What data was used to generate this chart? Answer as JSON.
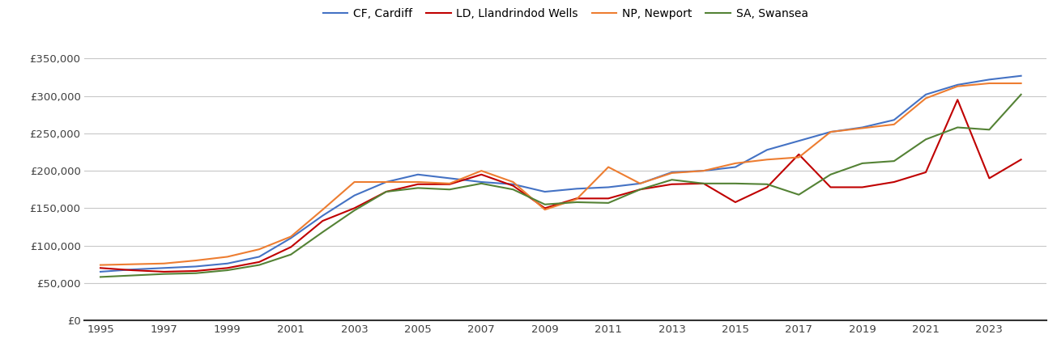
{
  "series": {
    "CF, Cardiff": {
      "color": "#4472C4",
      "years": [
        1995,
        1996,
        1997,
        1998,
        1999,
        2000,
        2001,
        2002,
        2003,
        2004,
        2005,
        2006,
        2007,
        2008,
        2009,
        2010,
        2011,
        2012,
        2013,
        2014,
        2015,
        2016,
        2017,
        2018,
        2019,
        2020,
        2021,
        2022,
        2023,
        2024
      ],
      "values": [
        65000,
        68000,
        70000,
        72000,
        76000,
        85000,
        110000,
        140000,
        167000,
        185000,
        195000,
        190000,
        185000,
        182000,
        172000,
        176000,
        178000,
        183000,
        198000,
        200000,
        205000,
        228000,
        240000,
        252000,
        258000,
        268000,
        302000,
        315000,
        322000,
        327000
      ]
    },
    "LD, Llandrindod Wells": {
      "color": "#C00000",
      "years": [
        1995,
        1996,
        1997,
        1998,
        1999,
        2000,
        2001,
        2002,
        2003,
        2004,
        2005,
        2006,
        2007,
        2008,
        2009,
        2010,
        2011,
        2012,
        2013,
        2014,
        2015,
        2016,
        2017,
        2018,
        2019,
        2020,
        2021,
        2022,
        2023,
        2024
      ],
      "values": [
        70000,
        67000,
        65000,
        66000,
        70000,
        78000,
        98000,
        133000,
        150000,
        172000,
        182000,
        182000,
        195000,
        180000,
        150000,
        163000,
        163000,
        175000,
        182000,
        183000,
        158000,
        178000,
        222000,
        178000,
        178000,
        185000,
        198000,
        295000,
        190000,
        215000
      ]
    },
    "NP, Newport": {
      "color": "#ED7D31",
      "years": [
        1995,
        1996,
        1997,
        1998,
        1999,
        2000,
        2001,
        2002,
        2003,
        2004,
        2005,
        2006,
        2007,
        2008,
        2009,
        2010,
        2011,
        2012,
        2013,
        2014,
        2015,
        2016,
        2017,
        2018,
        2019,
        2020,
        2021,
        2022,
        2023,
        2024
      ],
      "values": [
        74000,
        75000,
        76000,
        80000,
        85000,
        95000,
        112000,
        148000,
        185000,
        185000,
        185000,
        183000,
        200000,
        185000,
        148000,
        162000,
        205000,
        183000,
        197000,
        200000,
        210000,
        215000,
        218000,
        252000,
        257000,
        262000,
        297000,
        313000,
        317000,
        317000
      ]
    },
    "SA, Swansea": {
      "color": "#548235",
      "years": [
        1995,
        1996,
        1997,
        1998,
        1999,
        2000,
        2001,
        2002,
        2003,
        2004,
        2005,
        2006,
        2007,
        2008,
        2009,
        2010,
        2011,
        2012,
        2013,
        2014,
        2015,
        2016,
        2017,
        2018,
        2019,
        2020,
        2021,
        2022,
        2023,
        2024
      ],
      "values": [
        58000,
        60000,
        62000,
        63000,
        67000,
        74000,
        88000,
        118000,
        147000,
        172000,
        177000,
        175000,
        183000,
        175000,
        155000,
        158000,
        157000,
        175000,
        188000,
        183000,
        183000,
        182000,
        168000,
        195000,
        210000,
        213000,
        242000,
        258000,
        255000,
        302000
      ]
    }
  },
  "xlim": [
    1994.5,
    2024.8
  ],
  "ylim": [
    0,
    370000
  ],
  "yticks": [
    0,
    50000,
    100000,
    150000,
    200000,
    250000,
    300000,
    350000
  ],
  "xticks": [
    1995,
    1997,
    1999,
    2001,
    2003,
    2005,
    2007,
    2009,
    2011,
    2013,
    2015,
    2017,
    2019,
    2021,
    2023
  ],
  "background_color": "#ffffff",
  "grid_color": "#c8c8c8",
  "legend_order": [
    "CF, Cardiff",
    "LD, Llandrindod Wells",
    "NP, Newport",
    "SA, Swansea"
  ]
}
